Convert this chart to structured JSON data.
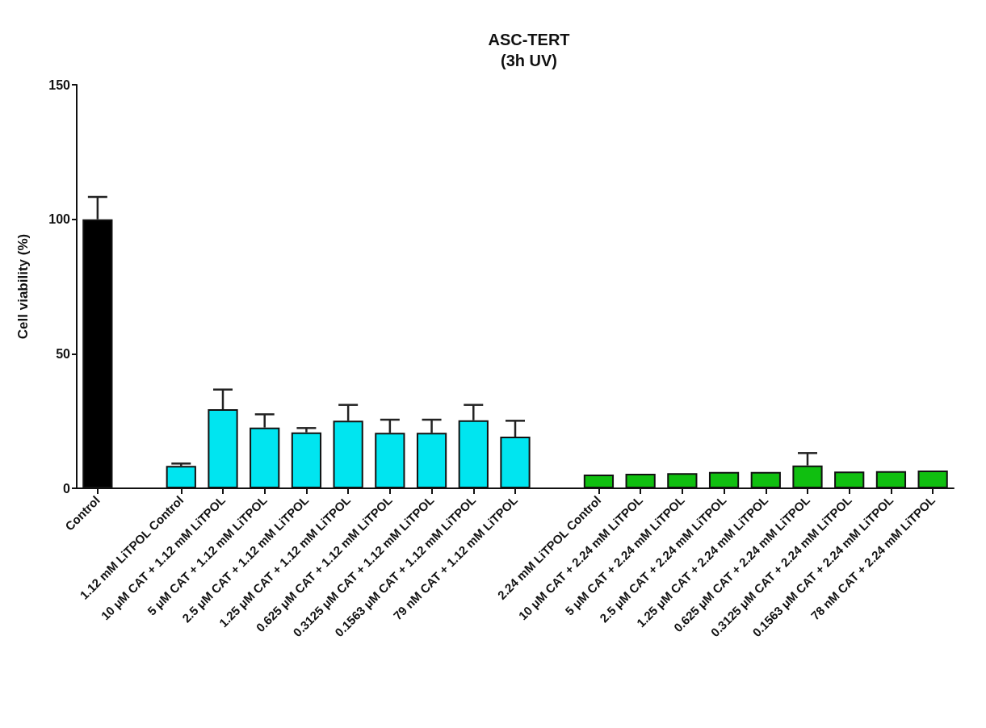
{
  "chart_data": {
    "type": "bar",
    "title": "ASC-TERT",
    "subtitle": "(3h UV)",
    "ylabel": "Cell viability (%)",
    "categories": [
      "Control",
      null,
      "1.12 mM LiTPOL Control",
      "10 μM CAT + 1.12 mM LiTPOL",
      "5 μM CAT + 1.12 mM LiTPOL",
      "2.5 μM CAT + 1.12 mM LiTPOL",
      "1.25 μM CAT + 1.12 mM LiTPOL",
      "0.625 μM CAT + 1.12 mM LiTPOL",
      "0.3125 μM CAT + 1.12 mM LiTPOL",
      "0.1563 μM CAT + 1.12 mM LiTPOL",
      "79 nM CAT + 1.12 mM LiTPOL",
      null,
      "2.24 mM LiTPOL Control",
      "10 μM CAT + 2.24 mM LiTPOL",
      "5 μM CAT + 2.24 mM LiTPOL",
      "2.5 μM CAT + 2.24 mM LiTPOL",
      "1.25 μM CAT + 2.24 mM LiTPOL",
      "0.625 μM CAT + 2.24 mM LiTPOL",
      "0.3125 μM CAT + 2.24 mM LiTPOL",
      "0.1563 μM CAT + 2.24 mM LiTPOL",
      "78 nM CAT + 2.24 mM LiTPOL"
    ],
    "values": [
      100,
      null,
      8.3,
      29.4,
      22.6,
      20.8,
      25.1,
      20.6,
      20.6,
      25.3,
      19.2,
      null,
      5.1,
      5.4,
      5.6,
      6.1,
      6.1,
      8.5,
      6.2,
      6.4,
      6.6
    ],
    "errors": [
      8.3,
      null,
      0.9,
      7.3,
      4.9,
      1.6,
      5.9,
      4.9,
      4.9,
      5.7,
      5.9,
      null,
      null,
      null,
      null,
      null,
      null,
      4.6,
      null,
      null,
      null
    ],
    "colors": [
      "#000000",
      null,
      "#00e5f0",
      "#00e5f0",
      "#00e5f0",
      "#00e5f0",
      "#00e5f0",
      "#00e5f0",
      "#00e5f0",
      "#00e5f0",
      "#00e5f0",
      null,
      "#10bf10",
      "#10bf10",
      "#10bf10",
      "#10bf10",
      "#10bf10",
      "#10bf10",
      "#10bf10",
      "#10bf10",
      "#10bf10"
    ],
    "ylim": [
      0,
      150
    ],
    "yticks": [
      0,
      50,
      100,
      150
    ],
    "grid": false
  }
}
